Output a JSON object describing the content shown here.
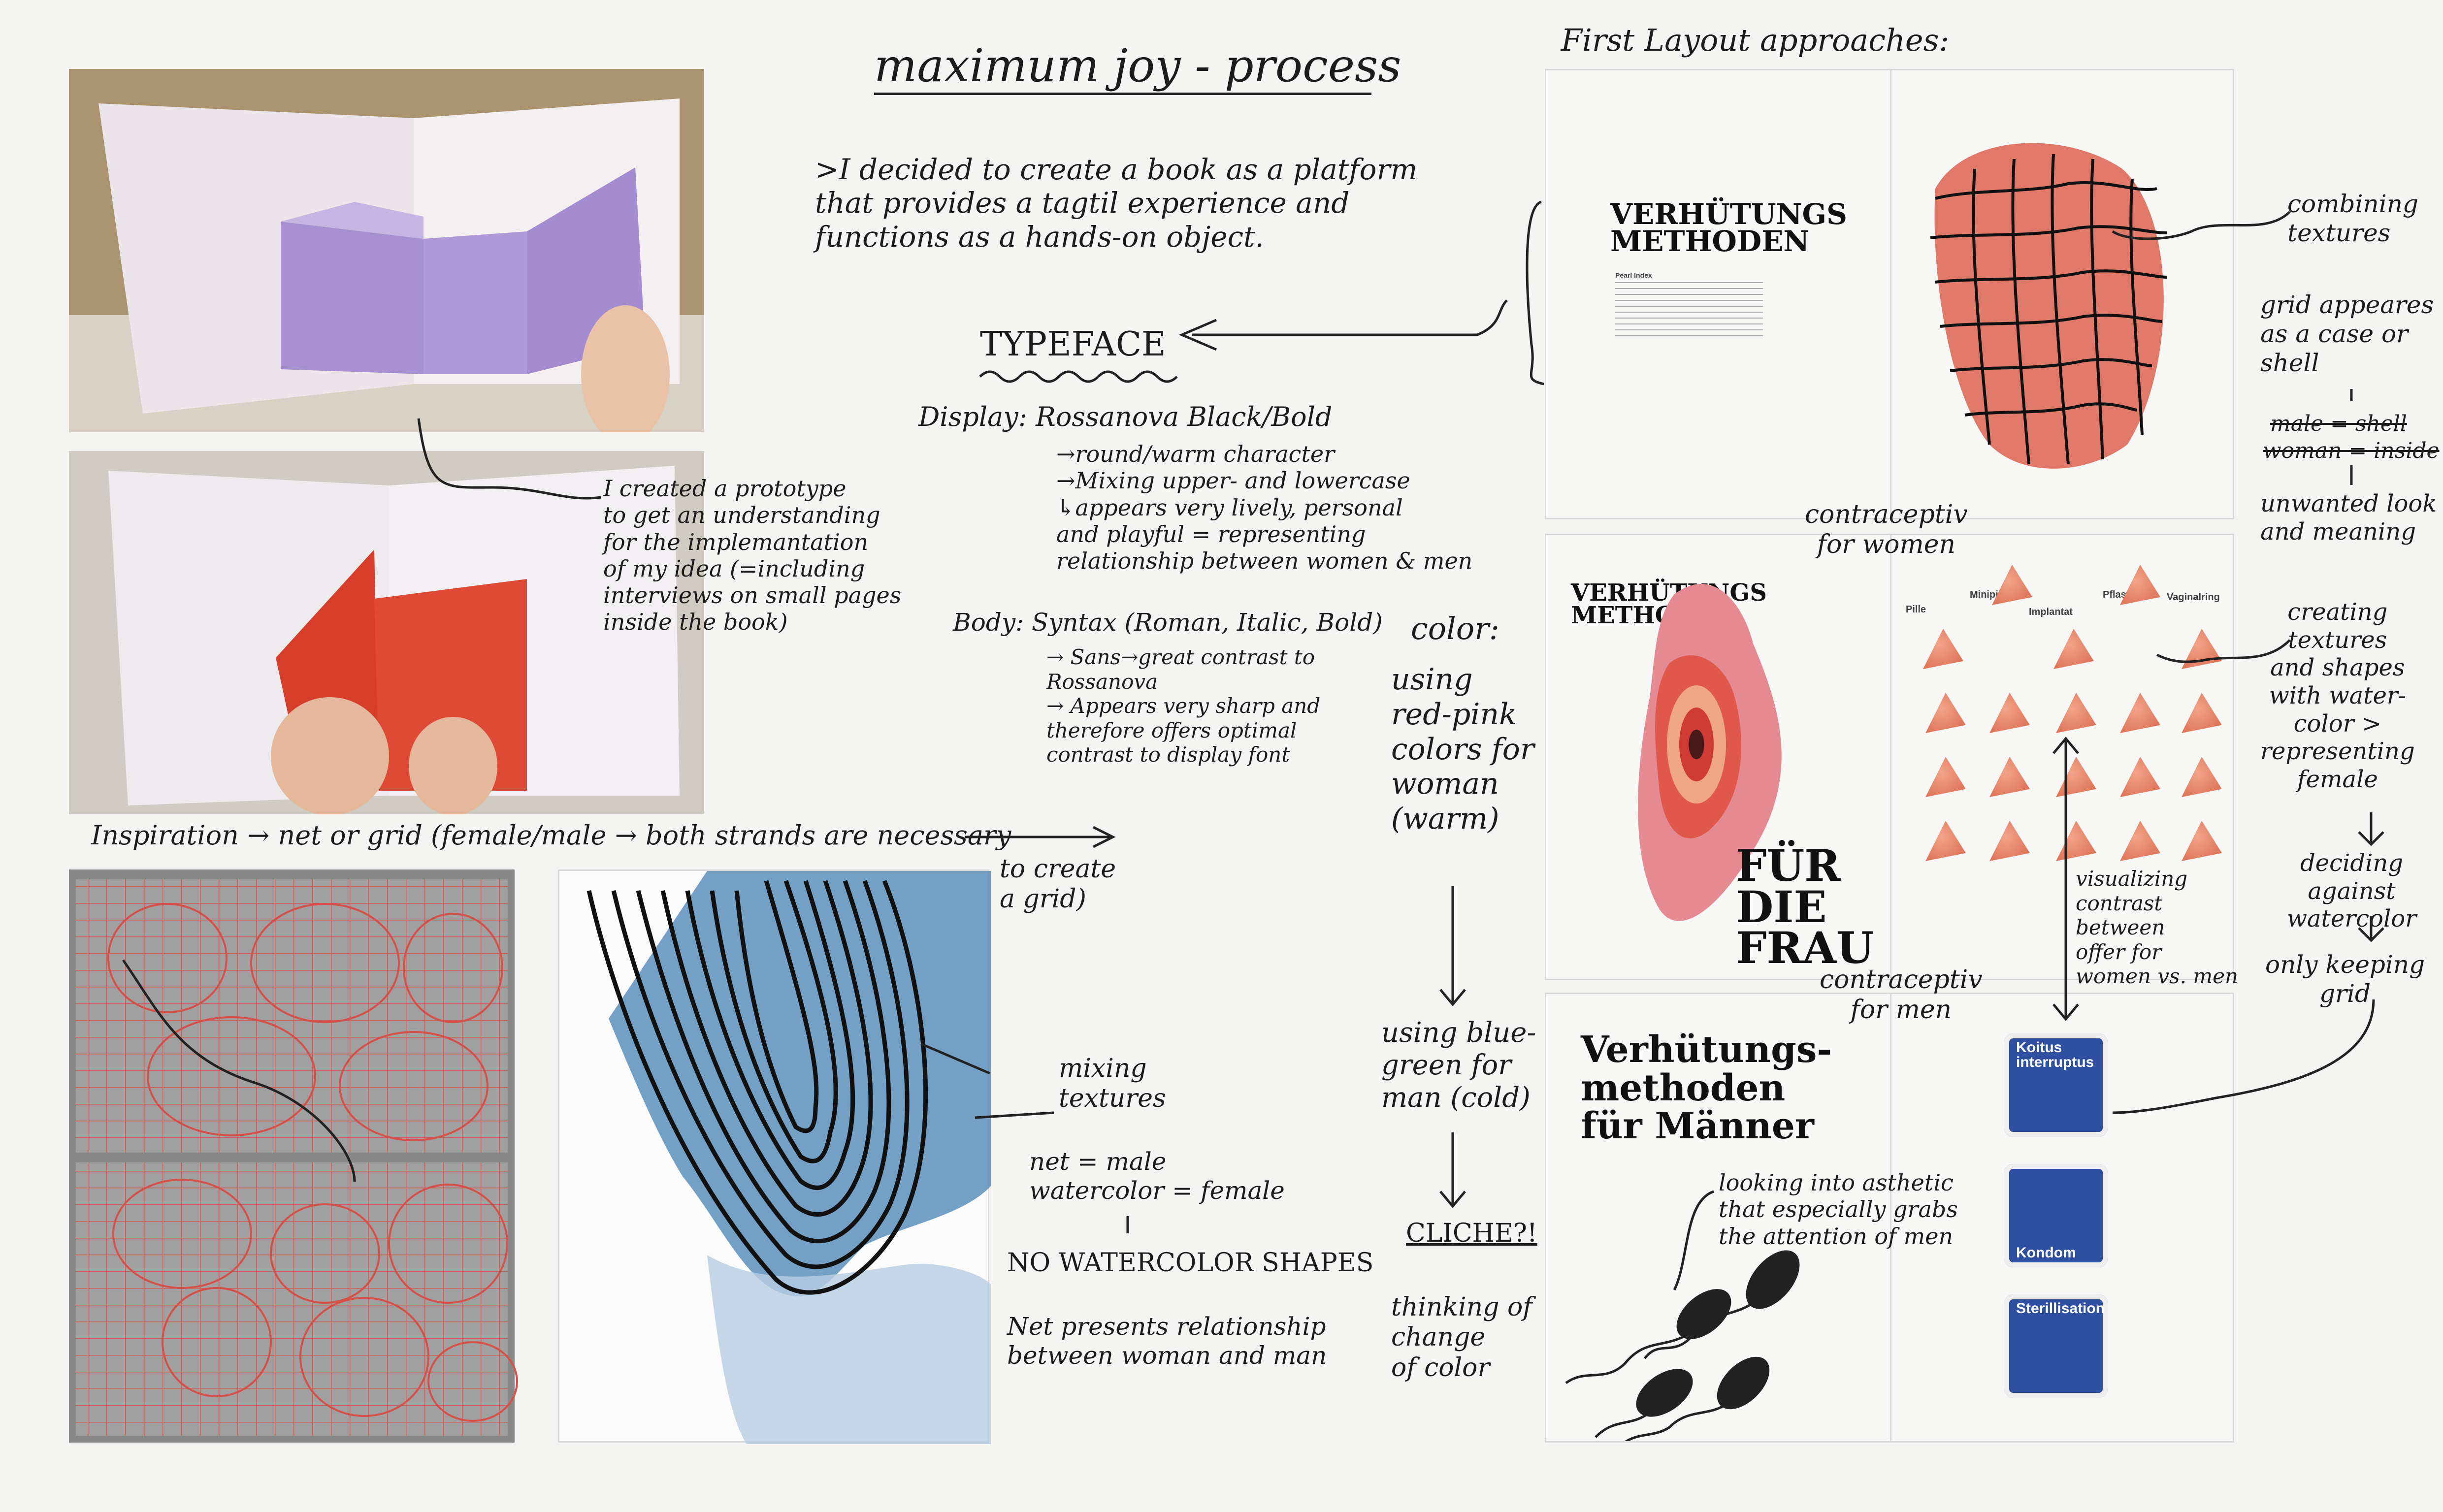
{
  "title": "maximum joy - process",
  "intro": ">I decided to create a book as a platform\nthat provides a tagtil experience and\nfunctions as a hands-on object.",
  "typeface": {
    "heading": "TYPEFACE",
    "display": "Display: Rossanova Black/Bold",
    "display_notes": "→round/warm character\n→Mixing upper- and lowercase\n ↳appears very lively, personal\n   and playful = representing\n   relationship between women & men",
    "body": "Body: Syntax (Roman, Italic, Bold)",
    "body_notes": "→ Sans→great contrast to\n      Rossanova\n→ Appears very sharp and\n   therefore offers optimal\n   contrast to display font"
  },
  "color": {
    "heading": "color:",
    "women": "using\nred-pink\ncolors for\nwoman\n(warm)",
    "men": "using blue-\ngreen for\nman (cold)",
    "cliche": "CLICHE?!",
    "thinking": "thinking of\nchange\nof color"
  },
  "prototype_note": "I created a prototype\nto get an understanding\nfor the implemantation\nof my idea (=including\ninterviews on small pages\ninside the book)",
  "inspiration": {
    "line": "Inspiration → net or grid (female/male → both strands are necessary",
    "line2": "to create\na grid)"
  },
  "mixing": {
    "label": "mixing\ntextures",
    "eq": "net = male\nwatercolor = female",
    "no": "NO WATERCOLOR SHAPES",
    "net": "Net presents relationship\nbetween woman and man"
  },
  "layouts": {
    "heading": "First Layout approaches:",
    "spread1_title": "VERHÜTUNGS\nMETHODEN",
    "spread1_sub": "Pearl Index",
    "spread2_title": "VERHÜTUNGS\nMETHODEN",
    "fuer_die_frau": "FÜR\nDIE\nFRAU",
    "contra_women": "contraceptiv\nfor women",
    "contra_men": "contraceptiv\nfor men",
    "methods": [
      "Pille",
      "Minipille",
      "Implantat",
      "Pflaster",
      "Vaginalring"
    ],
    "spread3_title": "Verhütungs-\nmethoden\nfür Männer",
    "men_methods": [
      "Koitus\ninterruptus",
      "Kondom",
      "Sterillisation"
    ],
    "aesthetic": "looking into asthetic\nthat especially grabs\nthe attention of men"
  },
  "side_notes": {
    "combining": "combining\ntextures",
    "grid": "grid appeares\nas a case or\nshell",
    "male_shell": "male = shell",
    "woman_inside": "woman = inside",
    "unwanted": "unwanted look\nand meaning",
    "creating": "creating\ntextures\nand shapes\nwith water-\ncolor >\nrepresenting\nfemale",
    "deciding": "deciding against\nwatercolor",
    "keeping": "only keeping\ngrid",
    "visualizing": "visualizing\ncontrast\nbetween\noffer for\nwomen vs. men"
  },
  "colors": {
    "red": "#d9553c",
    "pink": "#e9a2a6",
    "blue": "#3f6fa8",
    "lilac": "#a98fd0"
  }
}
